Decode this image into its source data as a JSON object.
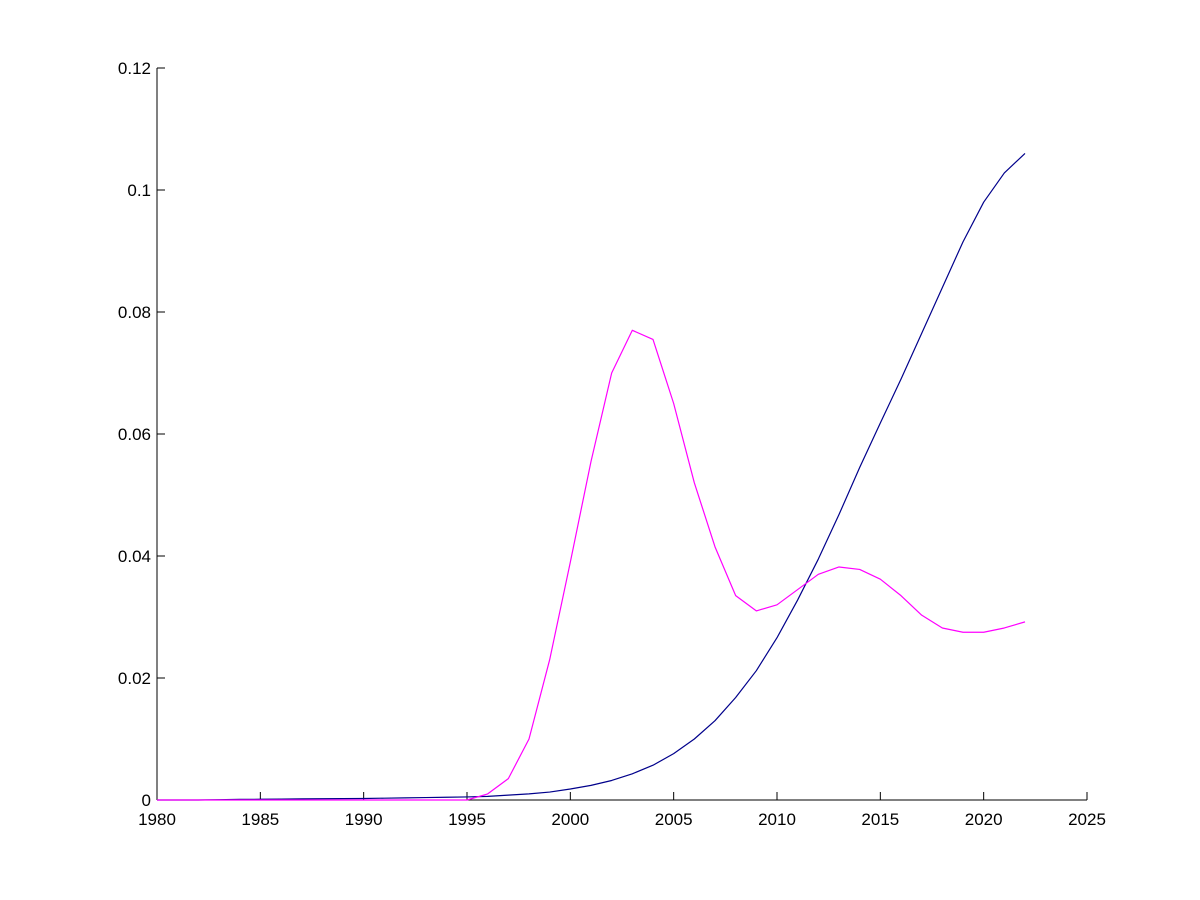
{
  "chart_data": {
    "type": "line",
    "title": "",
    "xlabel": "",
    "ylabel": "",
    "xlim": [
      1980,
      2025
    ],
    "ylim": [
      0,
      0.12
    ],
    "xticks": [
      "1980",
      "1985",
      "1990",
      "1995",
      "2000",
      "2005",
      "2010",
      "2015",
      "2020",
      "2025"
    ],
    "yticks": [
      "0",
      "0.02",
      "0.04",
      "0.06",
      "0.08",
      "0.1",
      "0.12"
    ],
    "grid": false,
    "legend": "none",
    "x": [
      1980,
      1981,
      1982,
      1983,
      1984,
      1985,
      1986,
      1987,
      1988,
      1989,
      1990,
      1991,
      1992,
      1993,
      1994,
      1995,
      1996,
      1997,
      1998,
      1999,
      2000,
      2001,
      2002,
      2003,
      2004,
      2005,
      2006,
      2007,
      2008,
      2009,
      2010,
      2011,
      2012,
      2013,
      2014,
      2015,
      2016,
      2017,
      2018,
      2019,
      2020,
      2021,
      2022
    ],
    "series": [
      {
        "color": "#00008b",
        "values": [
          0,
          0,
          0,
          5e-05,
          0.0001,
          0.00012,
          0.00015,
          0.00018,
          0.0002,
          0.00022,
          0.00025,
          0.0003,
          0.00035,
          0.0004,
          0.00045,
          0.0005,
          0.0006,
          0.0008,
          0.001,
          0.0013,
          0.0018,
          0.0024,
          0.0032,
          0.0043,
          0.0057,
          0.0076,
          0.01,
          0.013,
          0.0168,
          0.0212,
          0.0266,
          0.0328,
          0.0395,
          0.0468,
          0.0545,
          0.0618,
          0.069,
          0.0765,
          0.084,
          0.0915,
          0.098,
          0.1028,
          0.106
        ]
      },
      {
        "color": "#ff00ff",
        "values": [
          0,
          0,
          0,
          0,
          0,
          0,
          0,
          0,
          0,
          0,
          0,
          0,
          0,
          0,
          0,
          0,
          0.001,
          0.0035,
          0.01,
          0.023,
          0.039,
          0.0555,
          0.07,
          0.077,
          0.0755,
          0.065,
          0.052,
          0.0415,
          0.0335,
          0.031,
          0.032,
          0.0345,
          0.037,
          0.0382,
          0.0378,
          0.0362,
          0.0335,
          0.0303,
          0.0282,
          0.0275,
          0.0275,
          0.0282,
          0.0292
        ]
      }
    ]
  }
}
